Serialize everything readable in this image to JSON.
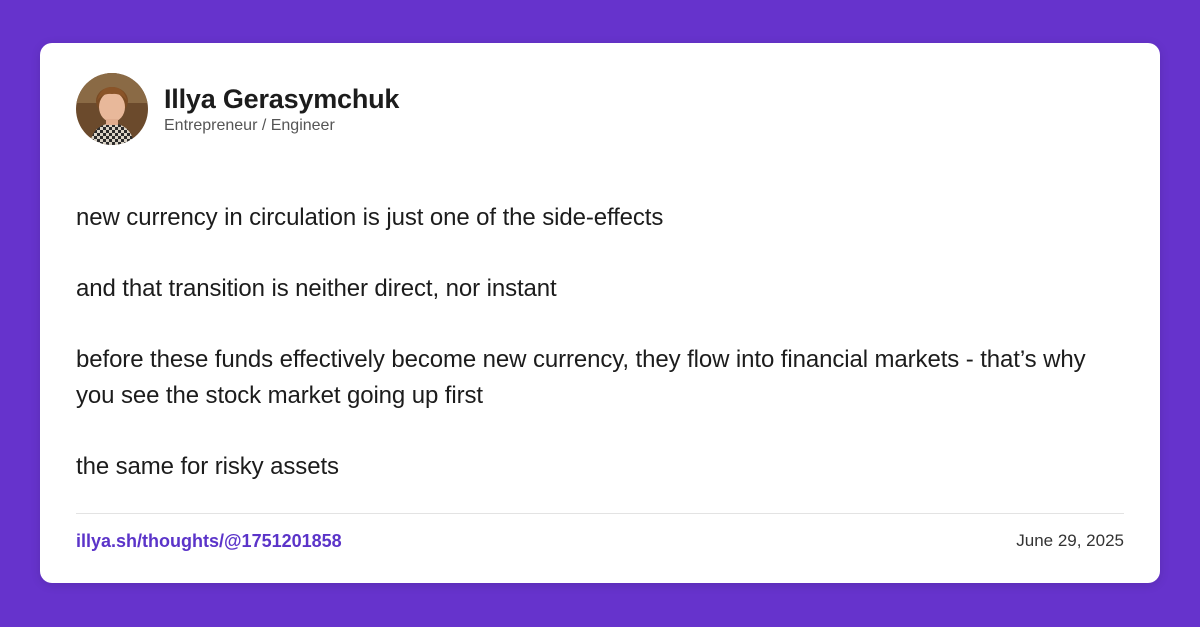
{
  "author": {
    "name": "Illya Gerasymchuk",
    "role": "Entrepreneur / Engineer"
  },
  "post": {
    "paragraphs": [
      "new currency in circulation is just one of the side-effects",
      "and that transition is neither direct, nor instant",
      "before these funds effectively become new currency, they flow into financial markets - that’s why you see the stock market going up first",
      "the same for risky assets"
    ]
  },
  "footer": {
    "link": "illya.sh/thoughts/@1751201858",
    "date": "June 29, 2025"
  },
  "colors": {
    "background": "#6633cc",
    "card": "#ffffff",
    "link": "#5b34c9"
  }
}
